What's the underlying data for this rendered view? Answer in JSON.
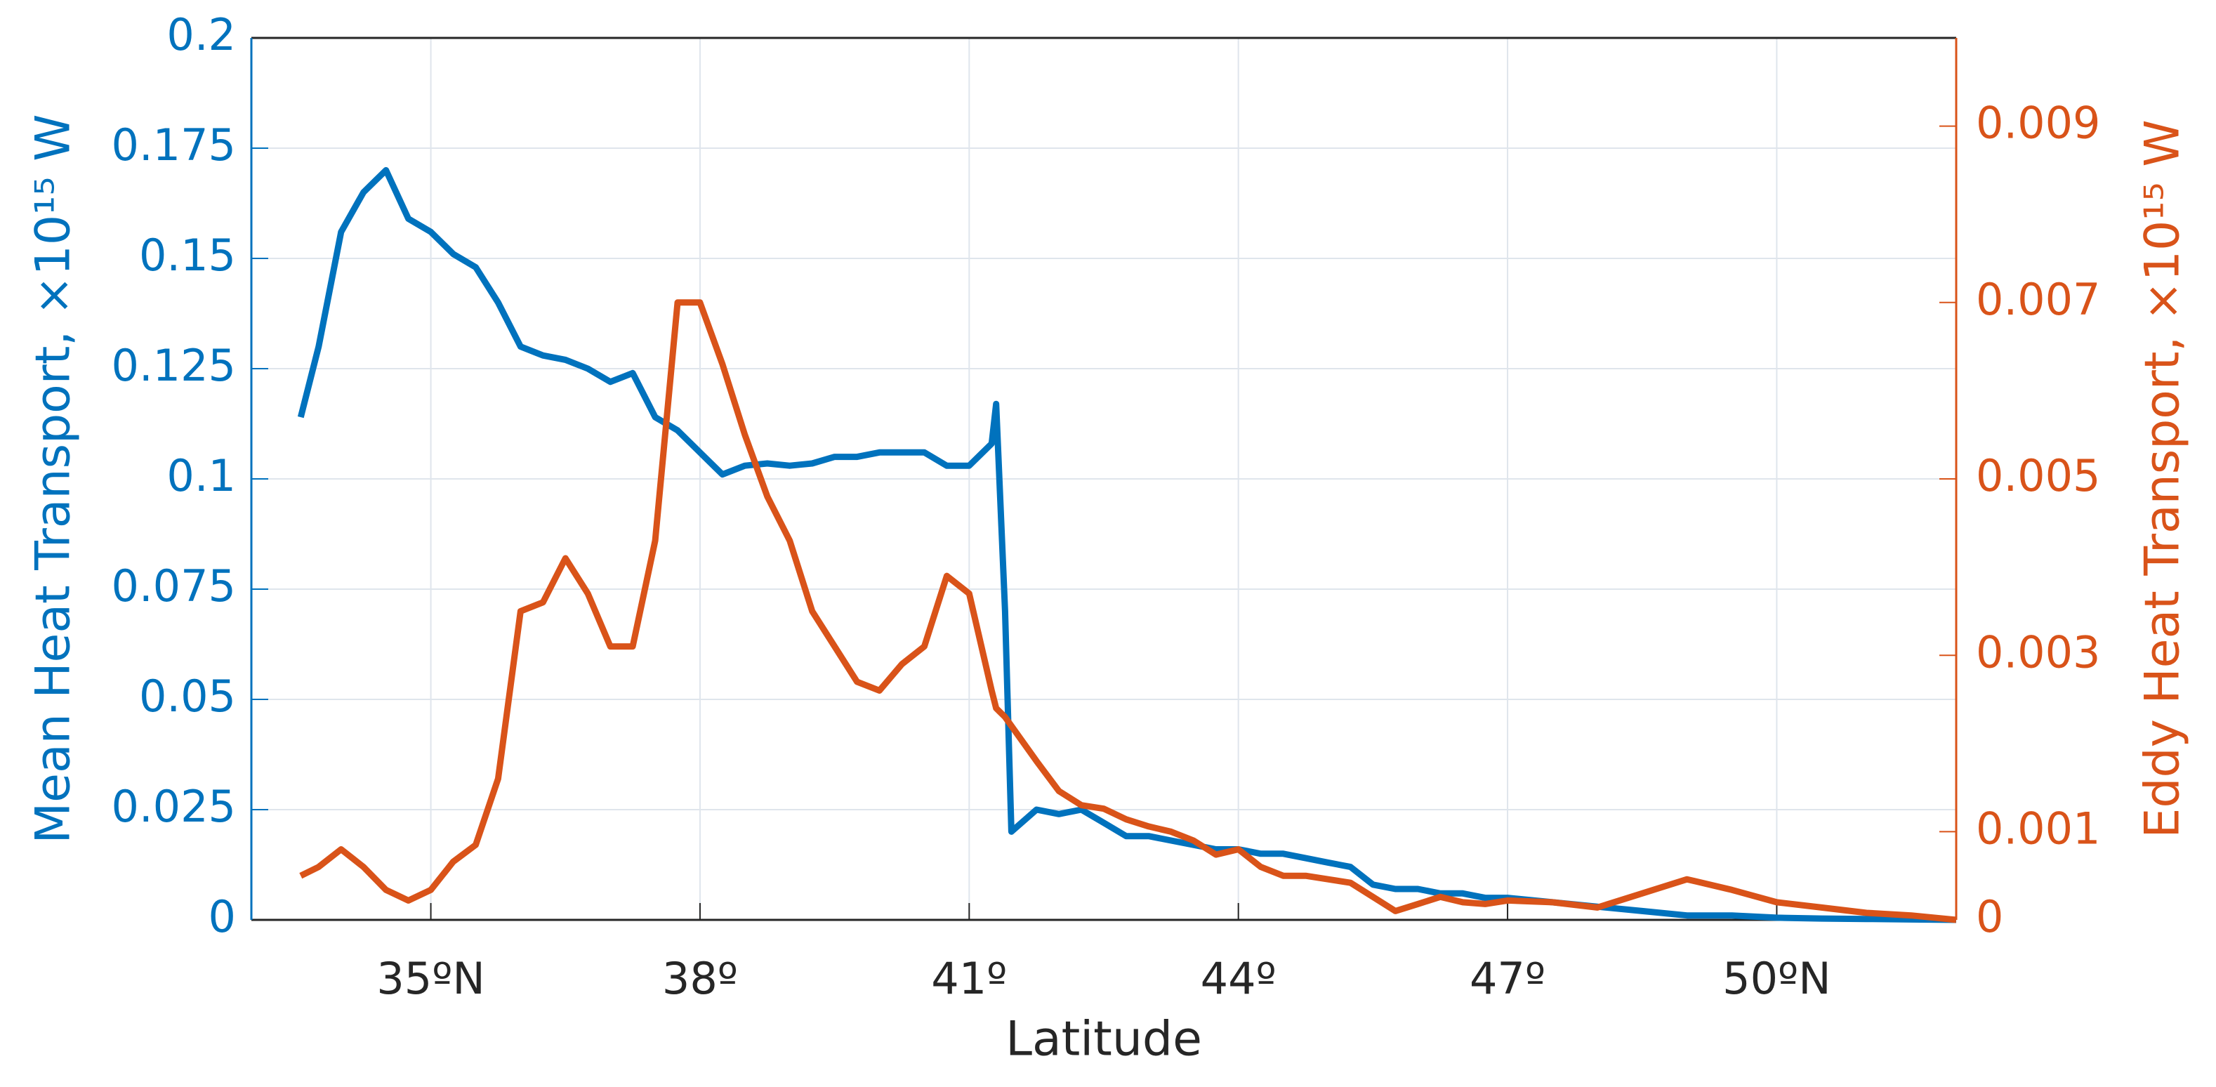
{
  "chart_data": {
    "type": "line",
    "xlabel": "Latitude",
    "ylabel": "Mean Heat Transport, ×10¹⁵ W",
    "y2label": "Eddy Heat Transport, ×10¹⁵ W",
    "x": [
      33.55,
      33.75,
      34,
      34.25,
      34.5,
      34.75,
      35,
      35.25,
      35.5,
      35.75,
      36,
      36.25,
      36.5,
      36.75,
      37,
      37.25,
      37.5,
      37.75,
      38,
      38.25,
      38.5,
      38.75,
      39,
      39.25,
      39.5,
      39.75,
      40,
      40.25,
      40.5,
      40.75,
      41,
      41.25,
      41.3,
      41.4,
      41.47,
      41.75,
      42,
      42.25,
      42.5,
      42.75,
      43,
      43.25,
      43.5,
      43.75,
      44,
      44.25,
      44.5,
      44.75,
      45,
      45.25,
      45.5,
      45.75,
      46,
      46.25,
      46.5,
      46.75,
      47,
      47.5,
      48,
      48.5,
      49,
      49.5,
      50,
      50.5,
      51,
      51.5,
      52
    ],
    "series": [
      {
        "name": "Mean",
        "color": "#0072bd",
        "axis": "y",
        "values": [
          0.114,
          0.13,
          0.156,
          0.165,
          0.17,
          0.159,
          0.156,
          0.151,
          0.148,
          0.14,
          0.13,
          0.128,
          0.127,
          0.125,
          0.122,
          0.124,
          0.114,
          0.111,
          0.106,
          0.101,
          0.103,
          0.1035,
          0.103,
          0.1035,
          0.105,
          0.105,
          0.106,
          0.106,
          0.106,
          0.103,
          0.103,
          0.108,
          0.117,
          0.07,
          0.02,
          0.025,
          0.024,
          0.025,
          0.022,
          0.019,
          0.019,
          0.018,
          0.017,
          0.016,
          0.016,
          0.015,
          0.015,
          0.014,
          0.013,
          0.012,
          0.008,
          0.007,
          0.007,
          0.006,
          0.006,
          0.005,
          0.005,
          0.004,
          0.003,
          0.002,
          0.001,
          0.001,
          0.0005,
          0.0003,
          0.0002,
          0.0001,
          0
        ]
      },
      {
        "name": "Eddy",
        "color": "#d95319",
        "axis": "y2",
        "values": [
          0.0005,
          0.0006,
          0.0008,
          0.0006,
          0.00034,
          0.00022,
          0.00034,
          0.00066,
          0.00085,
          0.0016,
          0.0035,
          0.0036,
          0.0041,
          0.0037,
          0.0031,
          0.0031,
          0.0043,
          0.007,
          0.007,
          0.0063,
          0.0055,
          0.0048,
          0.0043,
          0.0035,
          0.0031,
          0.0027,
          0.0026,
          0.0029,
          0.0031,
          0.0039,
          0.0037,
          0.0026,
          0.0024,
          0.0023,
          0.0022,
          0.0018,
          0.00146,
          0.0013,
          0.00126,
          0.00114,
          0.00106,
          0.001,
          0.0009,
          0.00074,
          0.0008,
          0.0006,
          0.0005,
          0.0005,
          0.00046,
          0.00042,
          0.00026,
          0.0001,
          0.00018,
          0.00026,
          0.0002,
          0.00018,
          0.00022,
          0.0002,
          0.00014,
          0.0003,
          0.00046,
          0.00034,
          0.0002,
          0.00014,
          8e-05,
          5e-05,
          0
        ]
      }
    ],
    "xlim": [
      33,
      52
    ],
    "xticks": [
      {
        "value": 35,
        "label": "35ºN"
      },
      {
        "value": 38,
        "label": "38º"
      },
      {
        "value": 41,
        "label": "41º"
      },
      {
        "value": 44,
        "label": "44º"
      },
      {
        "value": 47,
        "label": "47º"
      },
      {
        "value": 50,
        "label": "50ºN"
      }
    ],
    "ylim": [
      0,
      0.2
    ],
    "yticks": [
      0,
      0.025,
      0.05,
      0.075,
      0.1,
      0.125,
      0.15,
      0.175,
      0.2
    ],
    "y2lim": [
      0,
      0.01
    ],
    "y2ticks": [
      0,
      0.001,
      0.003,
      0.005,
      0.007,
      0.009
    ],
    "grid": true
  }
}
